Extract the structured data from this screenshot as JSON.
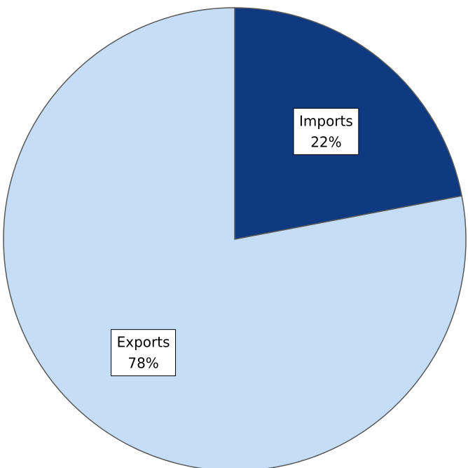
{
  "chart_data": {
    "type": "pie",
    "title": "",
    "start_angle_deg": 0,
    "direction": "clockwise",
    "edge_color": "#595959",
    "slices": [
      {
        "label": "Imports",
        "value": 22,
        "display_percent": "22%",
        "color": "#0f3a82"
      },
      {
        "label": "Exports",
        "value": 78,
        "display_percent": "78%",
        "color": "#c5ddf6"
      }
    ]
  }
}
